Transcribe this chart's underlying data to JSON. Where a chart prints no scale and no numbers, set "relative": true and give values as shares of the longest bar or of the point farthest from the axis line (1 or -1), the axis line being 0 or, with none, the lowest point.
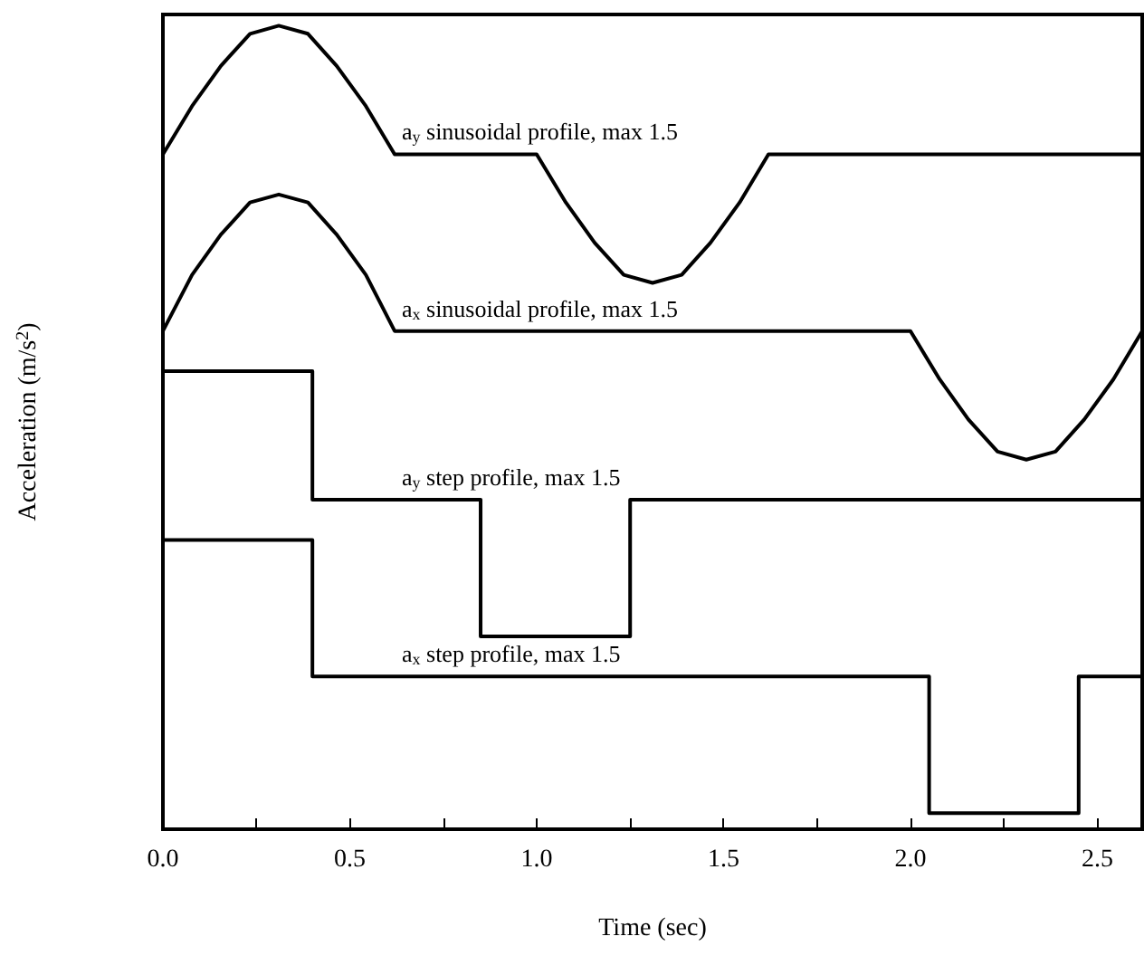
{
  "chart_data": {
    "type": "line",
    "relative": true,
    "xlabel": "Time (sec)",
    "ylabel": "Acceleration (m/s$^{2}$)",
    "xlim": [
      0,
      2.62
    ],
    "xticks": [
      {
        "value": 0,
        "label": "0.0"
      },
      {
        "value": 0.25,
        "label": null
      },
      {
        "value": 0.5,
        "label": "0.5"
      },
      {
        "value": 0.75,
        "label": null
      },
      {
        "value": 1,
        "label": "1.0"
      },
      {
        "value": 1.25,
        "label": null
      },
      {
        "value": 1.5,
        "label": "1.5"
      },
      {
        "value": 1.75,
        "label": null
      },
      {
        "value": 2,
        "label": "2.0"
      },
      {
        "value": 2.25,
        "label": null
      },
      {
        "value": 2.5,
        "label": "2.5"
      }
    ],
    "grid": false,
    "legend": false,
    "marker": "none",
    "line_style": "solid",
    "series": [
      {
        "name": "a$_{y}$ sinusoidal profile, max 1.5",
        "color": "#000000",
        "x": [
          0,
          0.078,
          0.155,
          0.233,
          0.31,
          0.388,
          0.465,
          0.543,
          0.62,
          1.0,
          1.078,
          1.155,
          1.233,
          1.31,
          1.388,
          1.465,
          1.543,
          1.62,
          2.62
        ],
        "values": [
          0.84,
          0.9,
          0.95,
          0.99,
          1.0,
          0.99,
          0.95,
          0.9,
          0.84,
          0.84,
          0.78,
          0.73,
          0.69,
          0.68,
          0.69,
          0.73,
          0.78,
          0.84,
          0.84
        ]
      },
      {
        "name": "a$_{x}$ sinusoidal profile, max 1.5",
        "color": "#000000",
        "x": [
          0,
          0.078,
          0.155,
          0.233,
          0.31,
          0.388,
          0.465,
          0.543,
          0.62,
          2.0,
          2.078,
          2.155,
          2.233,
          2.31,
          2.388,
          2.465,
          2.543,
          2.62
        ],
        "values": [
          0.62,
          0.69,
          0.74,
          0.78,
          0.79,
          0.78,
          0.74,
          0.69,
          0.62,
          0.62,
          0.56,
          0.51,
          0.47,
          0.46,
          0.47,
          0.51,
          0.56,
          0.62
        ]
      },
      {
        "name": "a$_{y}$ step profile, max 1.5",
        "color": "#000000",
        "x": [
          0,
          0.4,
          0.4,
          0.85,
          0.85,
          1.25,
          1.25,
          2.62
        ],
        "values": [
          0.57,
          0.57,
          0.41,
          0.41,
          0.24,
          0.24,
          0.41,
          0.41
        ]
      },
      {
        "name": "a$_{x}$ step profile, max 1.5",
        "color": "#000000",
        "x": [
          0,
          0.4,
          0.4,
          2.05,
          2.05,
          2.45,
          2.45,
          2.62
        ],
        "values": [
          0.36,
          0.36,
          0.19,
          0.19,
          0.02,
          0.02,
          0.19,
          0.19
        ]
      }
    ]
  }
}
